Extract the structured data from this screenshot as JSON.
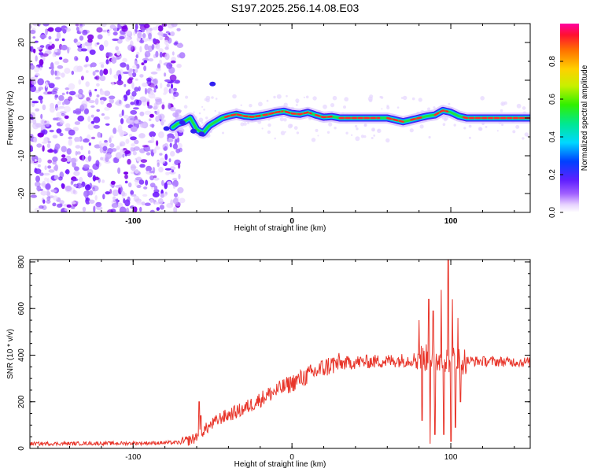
{
  "title": "S197.2025.256.14.08.E03",
  "chart_data": [
    {
      "type": "heatmap",
      "name": "spectrogram",
      "xlabel": "Height of straight line (km)",
      "ylabel": "Frequency (Hz)",
      "xlim": [
        -165,
        150
      ],
      "ylim": [
        -25,
        25
      ],
      "xticks": [
        -100,
        0,
        100
      ],
      "yticks": [
        -20,
        -10,
        0,
        10,
        20
      ],
      "noise_region_x": [
        -165,
        -72
      ],
      "ridge": {
        "x": [
          -75,
          -72,
          -68,
          -64,
          -60,
          -56,
          -52,
          -48,
          -44,
          -40,
          -35,
          -30,
          -25,
          -20,
          -15,
          -10,
          -5,
          0,
          5,
          10,
          15,
          20,
          25,
          30,
          35,
          40,
          45,
          50,
          55,
          60,
          65,
          70,
          75,
          80,
          85,
          90,
          95,
          100,
          105,
          110,
          120,
          130,
          140,
          150
        ],
        "freq": [
          -2.5,
          -1.5,
          -1,
          0,
          -3,
          -4,
          -2,
          -1,
          0,
          0.5,
          1,
          0.5,
          0.3,
          0.6,
          1,
          1.5,
          1.8,
          1.2,
          1.0,
          1.5,
          0.8,
          0.2,
          0.4,
          0.0,
          0.0,
          0.0,
          0.0,
          0.0,
          0.0,
          0.0,
          -0.5,
          -1,
          -0.5,
          0.0,
          0.5,
          0.8,
          2,
          1.5,
          0.5,
          0.0,
          0.0,
          0.0,
          0.0,
          0.0
        ]
      },
      "colorbar": {
        "label": "Normalized spectral amplitude",
        "range": [
          0,
          1
        ],
        "ticks": [
          "0.0",
          "0.2",
          "0.4",
          "0.6",
          "0.8"
        ]
      }
    },
    {
      "type": "line",
      "name": "snr",
      "xlabel": "Height of straight line (km)",
      "ylabel": "SNR (10 * v/v)",
      "xlim": [
        -165,
        150
      ],
      "ylim": [
        0,
        810
      ],
      "xticks": [
        -100,
        0,
        100
      ],
      "yticks": [
        0,
        200,
        400,
        600,
        800
      ],
      "color": "#e8352a",
      "trend": {
        "x": [
          -165,
          -100,
          -70,
          -62,
          -55,
          -45,
          -30,
          -15,
          0,
          15,
          25,
          40,
          60,
          75,
          80,
          110,
          150
        ],
        "y": [
          20,
          22,
          25,
          40,
          80,
          130,
          170,
          230,
          280,
          330,
          360,
          370,
          375,
          380,
          390,
          375,
          370
        ]
      },
      "spikes": [
        {
          "x": -58.5,
          "y": 200
        },
        {
          "x": -57.5,
          "y": 140
        },
        {
          "x": 80,
          "y": 550
        },
        {
          "x": 82,
          "y": 120
        },
        {
          "x": 86,
          "y": 640
        },
        {
          "x": 87,
          "y": 20
        },
        {
          "x": 89,
          "y": 590
        },
        {
          "x": 90,
          "y": 60
        },
        {
          "x": 94,
          "y": 680
        },
        {
          "x": 95.5,
          "y": 60
        },
        {
          "x": 98.5,
          "y": 810
        },
        {
          "x": 100,
          "y": 30
        },
        {
          "x": 101,
          "y": 640
        },
        {
          "x": 103,
          "y": 90
        },
        {
          "x": 104.5,
          "y": 560
        },
        {
          "x": 106,
          "y": 200
        }
      ]
    }
  ]
}
